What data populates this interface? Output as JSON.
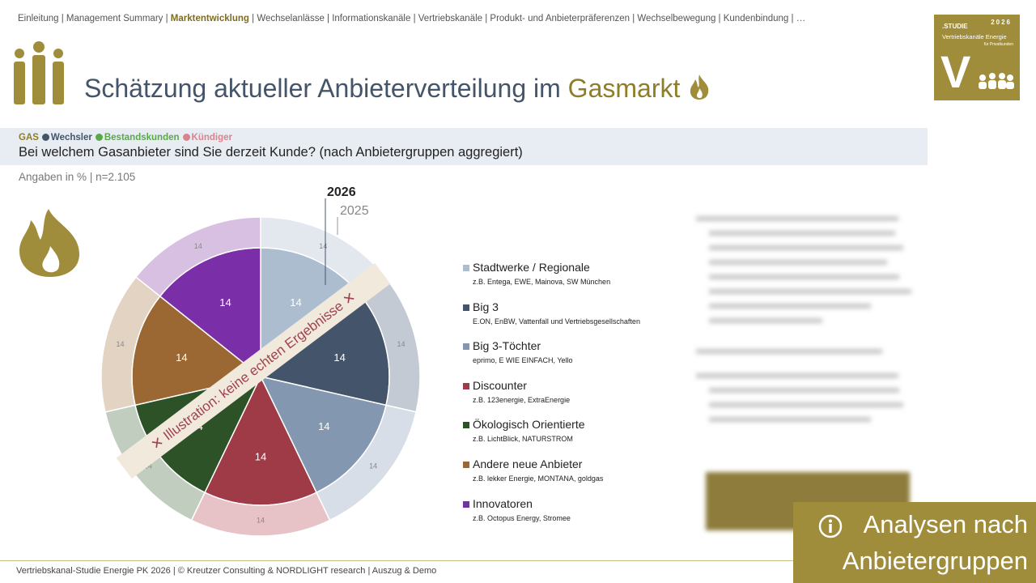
{
  "breadcrumb": {
    "before": "Einleitung | Management Summary | ",
    "active": "Marktentwicklung",
    "after": " | Wechselanlässe | Informationskanäle | Vertriebskanäle | Produkt- und Anbieterpräferenzen | Wechselbewegung | Kundenbindung | …"
  },
  "logo": {
    "kicker": ".STUDIE",
    "year": "2026",
    "line1": "Vertriebskanäle Energie",
    "line2": "für Privatkunden",
    "letter": "V"
  },
  "title": {
    "main": "Schätzung aktueller Anbieterverteilung im ",
    "highlight": "Gasmarkt"
  },
  "filter": {
    "gas": "GAS",
    "groups": [
      {
        "label": "Wechsler",
        "color": "#44546a"
      },
      {
        "label": "Bestandskunden",
        "color": "#5aa84a"
      },
      {
        "label": "Kündiger",
        "color": "#d9848c"
      }
    ]
  },
  "question": "Bei welchem Gasanbieter sind Sie derzeit Kunde? (nach Anbietergruppen aggregiert)",
  "base": "Angaben in % | n=2.105",
  "chart_data": {
    "type": "pie",
    "categories": [
      "Stadtwerke / Regionale",
      "Big 3",
      "Big 3-Töchter",
      "Discounter",
      "Ökologisch Orientierte",
      "Andere neue Anbieter",
      "Innovatoren"
    ],
    "examples": [
      "z.B. Entega, EWE, Mainova, SW München",
      "E.ON, EnBW, Vattenfall und Vertriebsgesellschaften",
      "eprimo, E WIE EINFACH, Yello",
      "z.B. 123energie, ExtraEnergie",
      "z.B. LichtBlick, NATURSTROM",
      "z.B. lekker Energie, MONTANA, goldgas",
      "z.B. Octopus Energy, Stromee"
    ],
    "series": [
      {
        "name": "2026",
        "values": [
          14,
          14,
          14,
          14,
          14,
          14,
          14
        ],
        "colors": [
          "#adbdd0",
          "#44546a",
          "#8497b0",
          "#9e3b47",
          "#2d5227",
          "#9b6733",
          "#7a2fa8"
        ]
      },
      {
        "name": "2025",
        "values": [
          14,
          14,
          14,
          14,
          14,
          14,
          14
        ],
        "colors": [
          "#e3e8ef",
          "#c4cad3",
          "#d7dee8",
          "#e7c2c6",
          "#c1cdbf",
          "#e3d3c2",
          "#d8c0e3"
        ]
      }
    ],
    "annotation": "✕ Illustration: keine echten Ergebnisse ✕"
  },
  "cta": [
    "Analysen nach",
    "Anbietergruppen"
  ],
  "footer": "Vertriebskanal-Studie Energie PK 2026 | © Kreutzer Consulting & NORDLIGHT research | Auszug & Demo"
}
